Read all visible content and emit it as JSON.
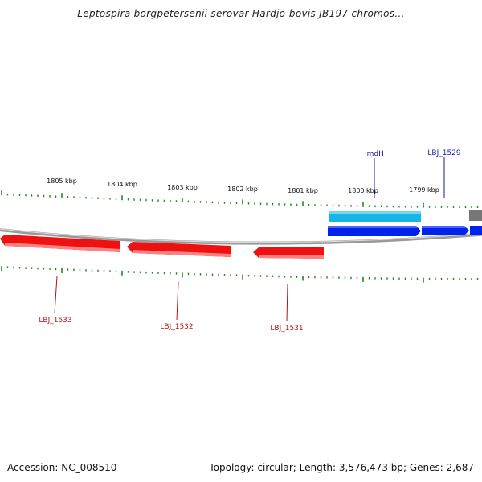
{
  "title": "Leptospira borgpetersenii serovar Hardjo-bovis JB197 chromos...",
  "accession": "Accession: NC_008510",
  "summary": "Topology: circular; Length: 3,576,473 bp; Genes: 2,687",
  "colors": {
    "forward_gene": "#0022ee",
    "forward_gene_light": "#18b4e6",
    "reverse_gene": "#ee1111",
    "backbone": "#8a8a8a",
    "ticks": "#228822",
    "forward_label": "#1a1aaa",
    "reverse_label": "#bb1111"
  },
  "scale_labels": [
    "1805 kbp",
    "1804 kbp",
    "1803 kbp",
    "1802 kbp",
    "1801 kbp",
    "1800 kbp",
    "1799 kbp"
  ],
  "genes": {
    "forward": [
      {
        "label": "imdH"
      },
      {
        "label": "LBJ_1529"
      }
    ],
    "reverse": [
      {
        "label": "LBJ_1533"
      },
      {
        "label": "LBJ_1532"
      },
      {
        "label": "LBJ_1531"
      }
    ]
  }
}
